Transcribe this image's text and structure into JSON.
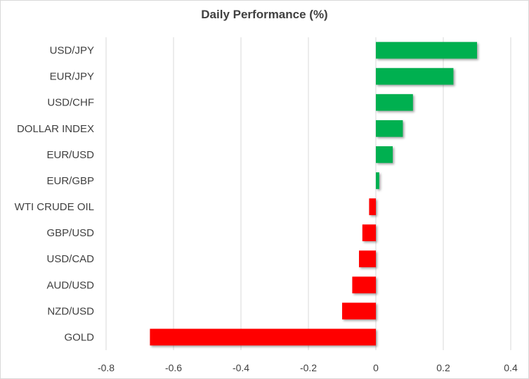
{
  "chart_data": {
    "type": "bar",
    "orientation": "horizontal",
    "title": "Daily Performance (%)",
    "categories": [
      "USD/JPY",
      "EUR/JPY",
      "USD/CHF",
      "DOLLAR INDEX",
      "EUR/USD",
      "EUR/GBP",
      "WTI CRUDE OIL",
      "GBP/USD",
      "USD/CAD",
      "AUD/USD",
      "NZD/USD",
      "GOLD"
    ],
    "values": [
      0.3,
      0.23,
      0.11,
      0.08,
      0.05,
      0.01,
      -0.02,
      -0.04,
      -0.05,
      -0.07,
      -0.1,
      -0.67
    ],
    "xlim": [
      -0.8,
      0.4
    ],
    "xticks": [
      -0.8,
      -0.6,
      -0.4,
      -0.2,
      0,
      0.2,
      0.4
    ],
    "xtick_labels": [
      "-0.8",
      "-0.6",
      "-0.4",
      "-0.2",
      "0",
      "0.2",
      "0.4"
    ],
    "grid": "vertical",
    "colors": {
      "positive": "#00b050",
      "negative": "#ff0000",
      "grid": "#d9d9d9"
    }
  }
}
